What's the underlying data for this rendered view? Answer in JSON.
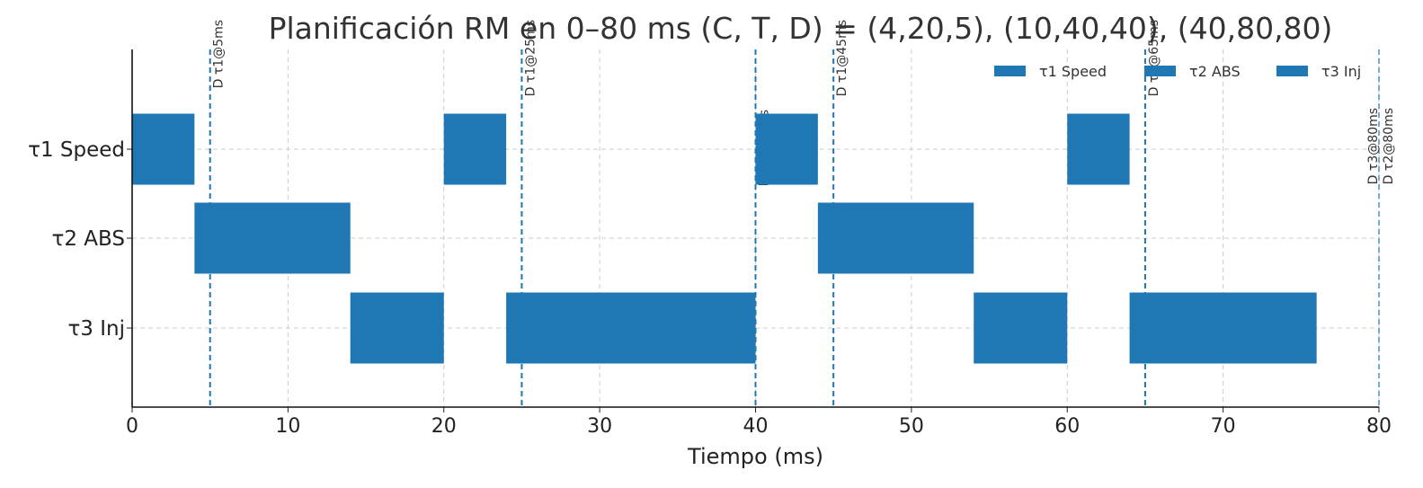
{
  "chart_data": {
    "type": "gantt",
    "title": "Planificación RM en 0–80 ms (C, T, D) = (4,20,5), (10,40,40), (40,80,80)",
    "xlabel": "Tiempo (ms)",
    "ylabel": "",
    "xlim": [
      0,
      80
    ],
    "xticks": [
      0,
      10,
      20,
      30,
      40,
      50,
      60,
      70,
      80
    ],
    "grid": true,
    "legend_position": "top-right",
    "bar_color": "#1f77b4",
    "deadline_color": "#1f77b4",
    "tasks": [
      {
        "name": "τ1 Speed",
        "segments": [
          [
            0,
            4
          ],
          [
            20,
            24
          ],
          [
            40,
            44
          ],
          [
            60,
            64
          ]
        ]
      },
      {
        "name": "τ2 ABS",
        "segments": [
          [
            4,
            14
          ],
          [
            44,
            54
          ]
        ]
      },
      {
        "name": "τ3 Inj",
        "segments": [
          [
            14,
            20
          ],
          [
            24,
            40
          ],
          [
            54,
            60
          ],
          [
            64,
            76
          ]
        ]
      }
    ],
    "deadlines": [
      {
        "x": 5,
        "label": "D τ1@5ms"
      },
      {
        "x": 25,
        "label": "D τ1@25ms"
      },
      {
        "x": 40,
        "label": "D τ2@40ms"
      },
      {
        "x": 45,
        "label": "D τ1@45ms"
      },
      {
        "x": 65,
        "label": "D τ1@65ms"
      },
      {
        "x": 80,
        "label": "D τ2@80ms"
      },
      {
        "x": 80,
        "label": "D τ3@80ms"
      }
    ]
  }
}
